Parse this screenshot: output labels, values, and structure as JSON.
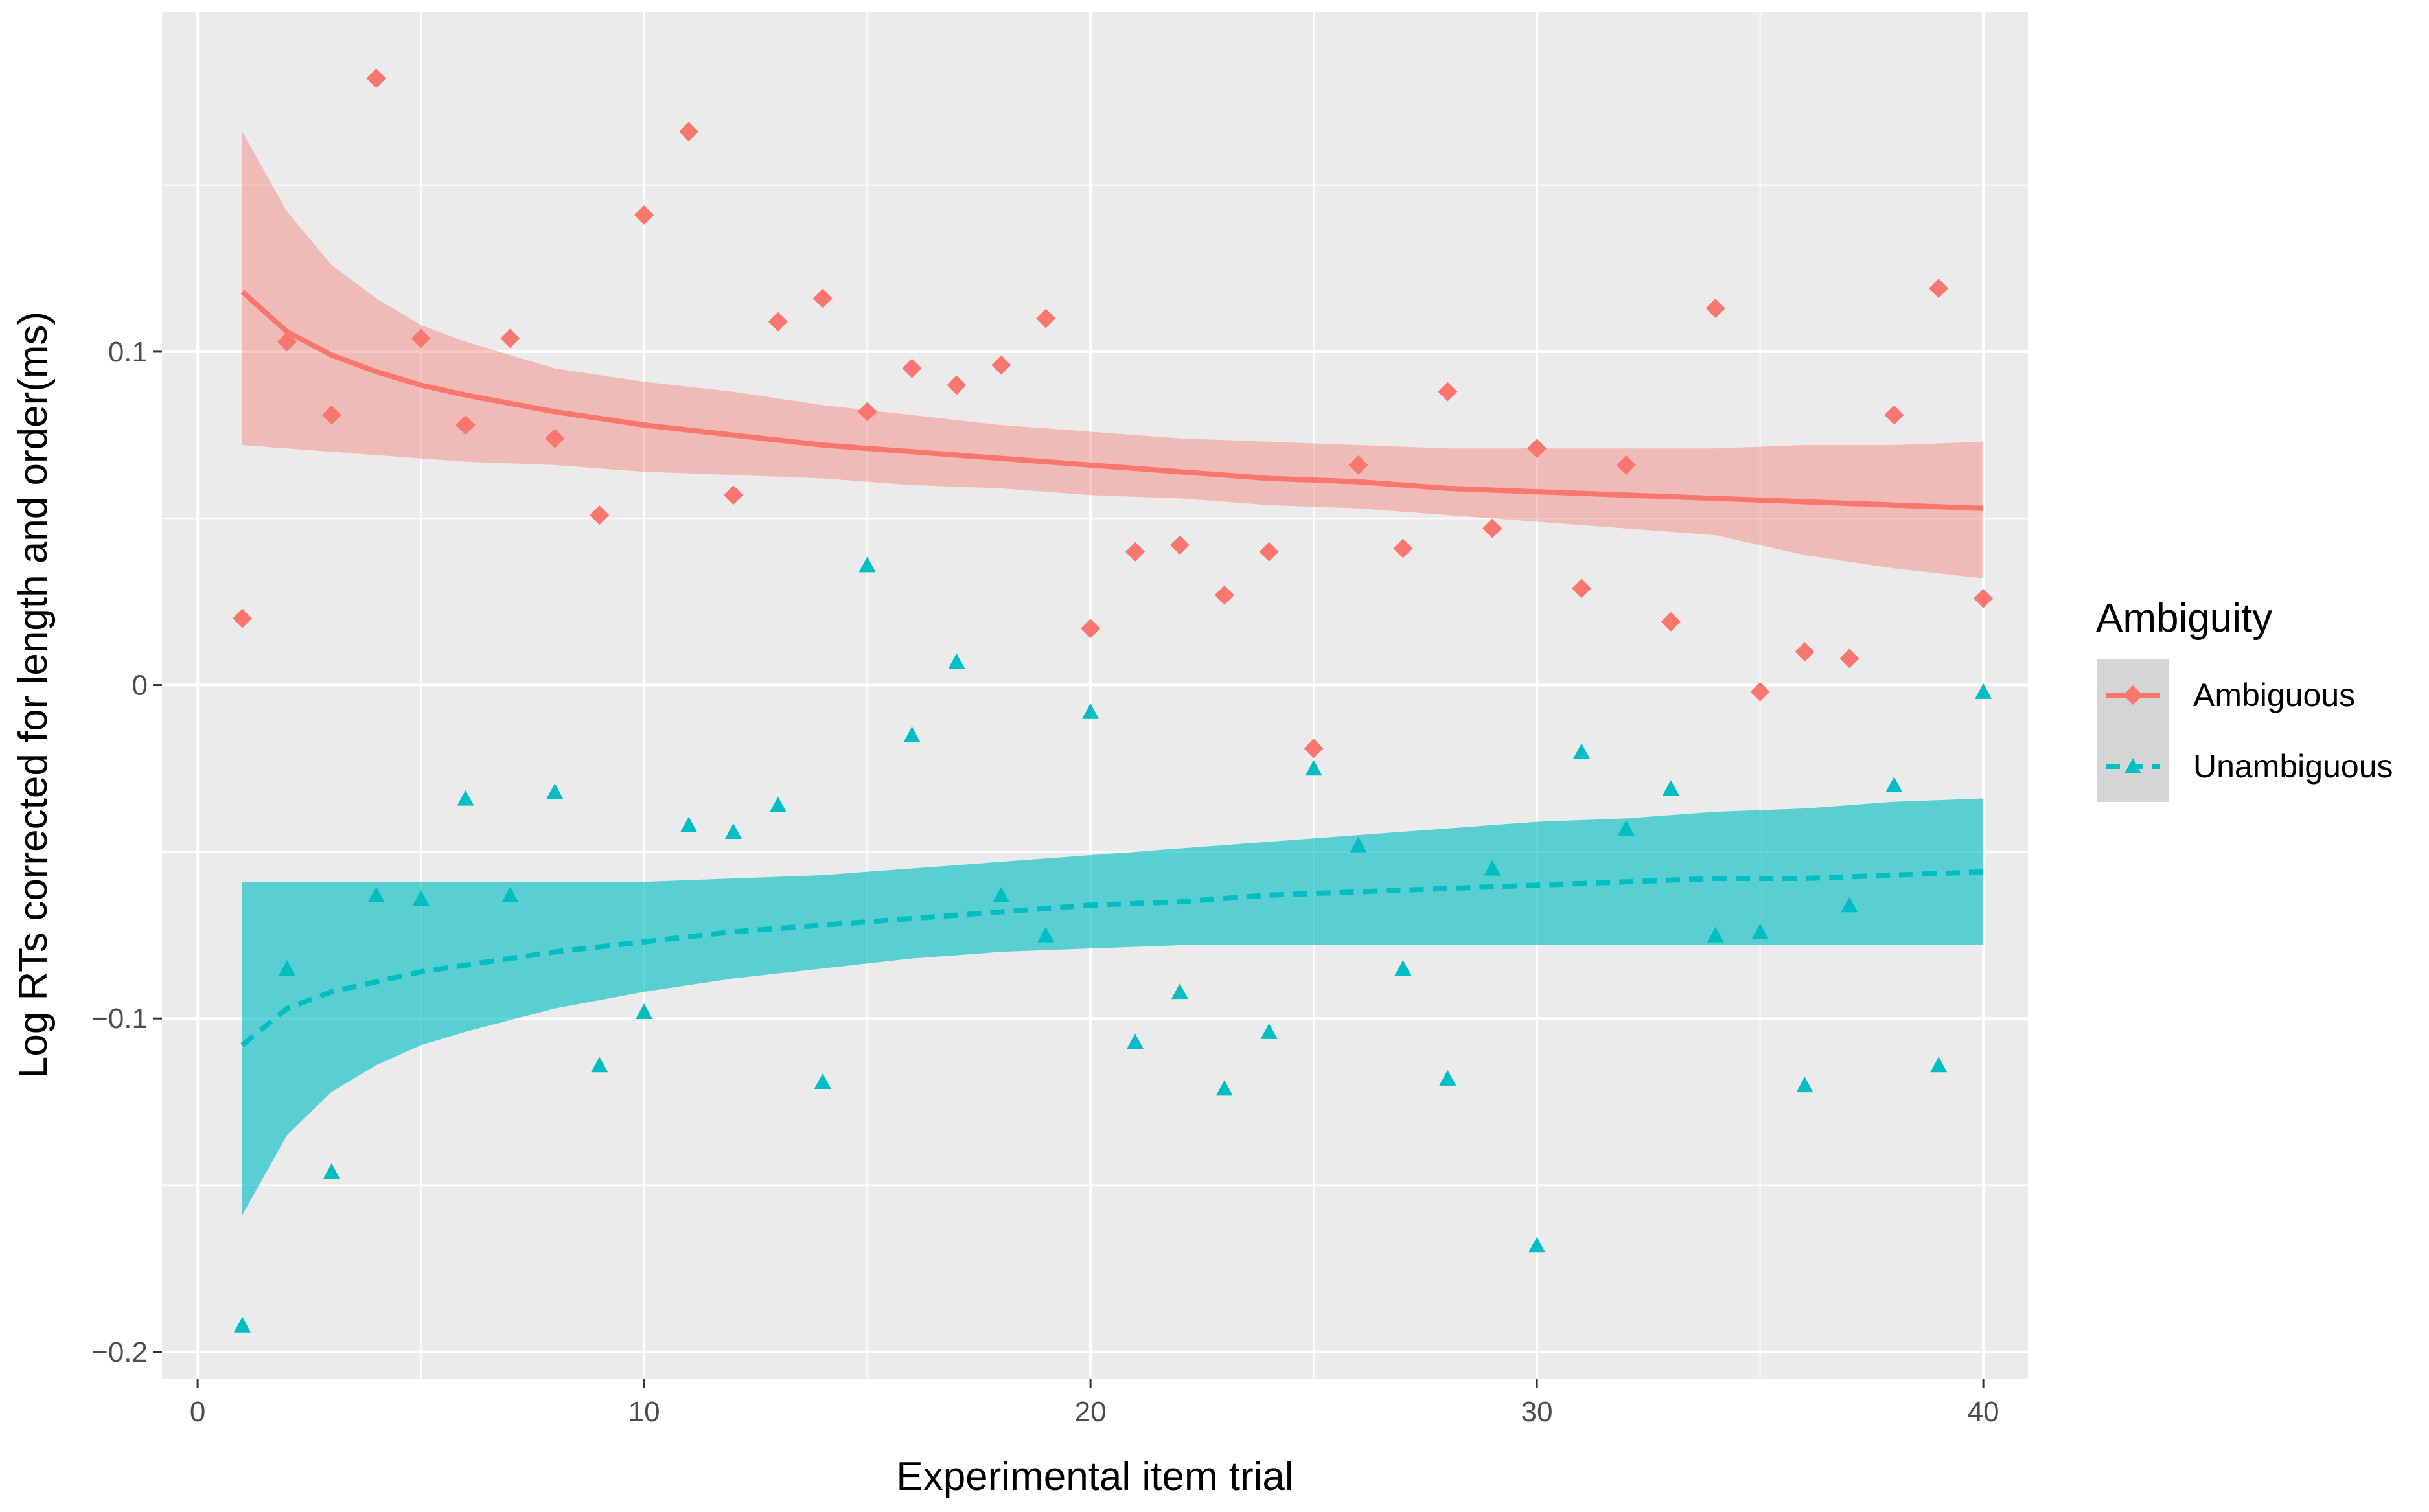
{
  "chart_data": {
    "type": "scatter",
    "title": "",
    "xlabel": "Experimental item trial",
    "ylabel": "Log RTs corrected for length and order(ms)",
    "xlim": [
      -0.8,
      41
    ],
    "ylim": [
      -0.208,
      0.202
    ],
    "xticks": [
      0,
      10,
      20,
      30,
      40
    ],
    "xtick_labels": [
      "0",
      "10",
      "20",
      "30",
      "40"
    ],
    "yticks": [
      -0.2,
      -0.1,
      0,
      0.1
    ],
    "ytick_labels": [
      "−0.2",
      "−0.1",
      "0",
      "0.1"
    ],
    "grid": true,
    "legend": {
      "title": "Ambiguity",
      "position": "right",
      "entries": [
        "Ambiguous",
        "Unambiguous"
      ]
    },
    "series": [
      {
        "name": "Ambiguous",
        "color": "#F8766D",
        "marker": "diamond",
        "line_style": "solid",
        "x": [
          1,
          2,
          3,
          4,
          5,
          6,
          7,
          8,
          9,
          10,
          11,
          12,
          13,
          14,
          15,
          16,
          17,
          18,
          19,
          20,
          21,
          22,
          23,
          24,
          25,
          26,
          27,
          28,
          29,
          30,
          31,
          32,
          33,
          34,
          35,
          36,
          37,
          38,
          39,
          40
        ],
        "y": [
          0.02,
          0.103,
          0.081,
          0.182,
          0.104,
          0.078,
          0.104,
          0.074,
          0.051,
          0.141,
          0.166,
          0.057,
          0.109,
          0.116,
          0.082,
          0.095,
          0.09,
          0.096,
          0.11,
          0.017,
          0.04,
          0.042,
          0.027,
          0.04,
          -0.019,
          0.066,
          0.041,
          0.088,
          0.047,
          0.071,
          0.029,
          0.066,
          0.019,
          0.113,
          -0.002,
          0.01,
          0.008,
          0.081,
          0.119,
          0.026
        ],
        "fit_x": [
          1,
          2,
          3,
          4,
          5,
          6,
          8,
          10,
          12,
          14,
          16,
          18,
          20,
          22,
          24,
          26,
          28,
          30,
          32,
          34,
          36,
          38,
          40
        ],
        "fit_y": [
          0.118,
          0.106,
          0.099,
          0.094,
          0.09,
          0.087,
          0.082,
          0.078,
          0.075,
          0.072,
          0.07,
          0.068,
          0.066,
          0.064,
          0.062,
          0.061,
          0.059,
          0.058,
          0.057,
          0.056,
          0.055,
          0.054,
          0.053
        ],
        "ci_lower": [
          0.072,
          0.071,
          0.07,
          0.069,
          0.068,
          0.067,
          0.066,
          0.064,
          0.063,
          0.062,
          0.06,
          0.059,
          0.057,
          0.056,
          0.054,
          0.053,
          0.051,
          0.049,
          0.047,
          0.045,
          0.039,
          0.035,
          0.032
        ],
        "ci_upper": [
          0.166,
          0.142,
          0.126,
          0.116,
          0.108,
          0.103,
          0.095,
          0.091,
          0.088,
          0.084,
          0.081,
          0.078,
          0.076,
          0.074,
          0.073,
          0.072,
          0.071,
          0.071,
          0.071,
          0.071,
          0.072,
          0.072,
          0.073
        ]
      },
      {
        "name": "Unambiguous",
        "color": "#00BFC4",
        "marker": "triangle",
        "line_style": "dashed",
        "x": [
          1,
          2,
          3,
          4,
          5,
          6,
          7,
          8,
          9,
          10,
          11,
          12,
          13,
          14,
          15,
          16,
          17,
          18,
          19,
          20,
          21,
          22,
          23,
          24,
          25,
          26,
          27,
          28,
          29,
          30,
          31,
          32,
          33,
          34,
          35,
          36,
          37,
          38,
          39,
          40
        ],
        "y": [
          -0.192,
          -0.085,
          -0.146,
          -0.063,
          -0.064,
          -0.034,
          -0.063,
          -0.032,
          -0.114,
          -0.098,
          -0.042,
          -0.044,
          -0.036,
          -0.119,
          0.036,
          -0.015,
          0.007,
          -0.063,
          -0.075,
          -0.008,
          -0.107,
          -0.092,
          -0.121,
          -0.104,
          -0.025,
          -0.048,
          -0.085,
          -0.118,
          -0.055,
          -0.168,
          -0.02,
          -0.043,
          -0.031,
          -0.075,
          -0.074,
          -0.12,
          -0.066,
          -0.03,
          -0.114,
          -0.002
        ],
        "fit_x": [
          1,
          2,
          3,
          4,
          5,
          6,
          8,
          10,
          12,
          14,
          16,
          18,
          20,
          22,
          24,
          26,
          28,
          30,
          32,
          34,
          36,
          38,
          40
        ],
        "fit_y": [
          -0.108,
          -0.097,
          -0.092,
          -0.089,
          -0.086,
          -0.084,
          -0.08,
          -0.077,
          -0.074,
          -0.072,
          -0.07,
          -0.068,
          -0.066,
          -0.065,
          -0.063,
          -0.062,
          -0.061,
          -0.06,
          -0.059,
          -0.058,
          -0.058,
          -0.057,
          -0.056
        ],
        "ci_lower": [
          -0.159,
          -0.135,
          -0.122,
          -0.114,
          -0.108,
          -0.104,
          -0.097,
          -0.092,
          -0.088,
          -0.085,
          -0.082,
          -0.08,
          -0.079,
          -0.078,
          -0.078,
          -0.078,
          -0.078,
          -0.078,
          -0.078,
          -0.078,
          -0.078,
          -0.078,
          -0.078
        ],
        "ci_upper": [
          -0.059,
          -0.059,
          -0.059,
          -0.059,
          -0.059,
          -0.059,
          -0.059,
          -0.059,
          -0.058,
          -0.057,
          -0.055,
          -0.053,
          -0.051,
          -0.049,
          -0.047,
          -0.045,
          -0.043,
          -0.041,
          -0.04,
          -0.038,
          -0.037,
          -0.035,
          -0.034
        ]
      }
    ]
  }
}
